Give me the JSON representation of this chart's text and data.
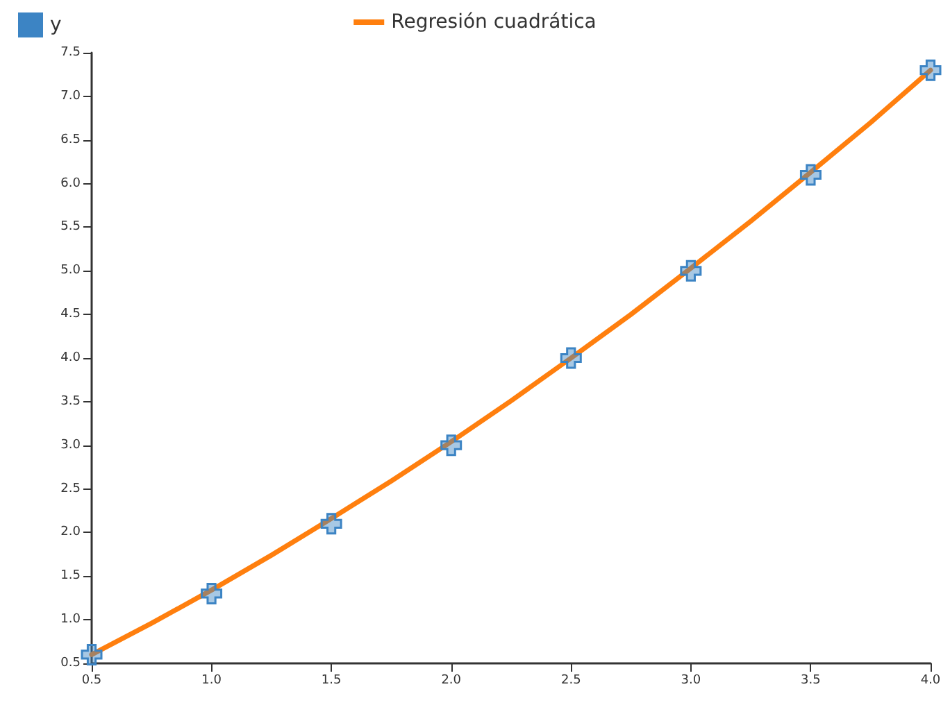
{
  "chart_data": {
    "type": "scatter",
    "x": [
      0.5,
      1.0,
      1.5,
      2.0,
      2.5,
      3.0,
      3.5,
      4.0
    ],
    "series": [
      {
        "name": "y",
        "color": "#3c84c4",
        "marker": "cross",
        "values": [
          0.6,
          1.3,
          2.1,
          3.0,
          4.0,
          5.0,
          6.1,
          7.3
        ]
      },
      {
        "name": "Regresión cuadrática",
        "type": "line",
        "color": "#ff7f0e",
        "marker": "none",
        "line_style": "solid",
        "x": [
          0.5,
          0.75,
          1.0,
          1.25,
          1.5,
          1.75,
          2.0,
          2.25,
          2.5,
          2.75,
          3.0,
          3.25,
          3.5,
          3.75,
          4.0
        ],
        "values": [
          0.6,
          0.96,
          1.34,
          1.74,
          2.16,
          2.59,
          3.04,
          3.51,
          4.0,
          4.5,
          5.03,
          5.57,
          6.13,
          6.7,
          7.3
        ]
      }
    ],
    "xlim": [
      0.5,
      4.0
    ],
    "xticks": [
      0.5,
      {
        "value": 1,
        "label": "1.0"
      },
      1.5,
      {
        "value": 2,
        "label": "2.0"
      },
      2.5,
      {
        "value": 3,
        "label": "3.0"
      },
      3.5,
      {
        "value": 4,
        "label": "4.0"
      }
    ],
    "ylim": [
      0.5,
      7.5
    ],
    "yticks": [
      0.5,
      {
        "value": 1,
        "label": "1.0"
      },
      1.5,
      {
        "value": 2,
        "label": "2.0"
      },
      2.5,
      {
        "value": 3,
        "label": "3.0"
      },
      3.5,
      {
        "value": 4,
        "label": "4.0"
      },
      4.5,
      {
        "value": 5,
        "label": "5.0"
      },
      5.5,
      {
        "value": 6,
        "label": "6.0"
      },
      6.5,
      {
        "value": 7,
        "label": "7.0"
      },
      7.5
    ],
    "grid": false,
    "legend": "top"
  }
}
